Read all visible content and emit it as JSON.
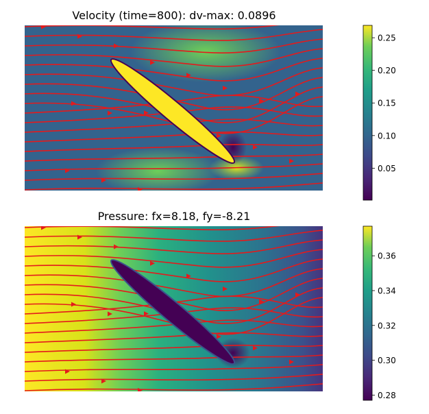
{
  "chart_data": [
    {
      "type": "field",
      "title": "Velocity (time=800): dv-max: 0.0896",
      "colormap": "viridis",
      "ylim": [
        0.001,
        0.269
      ],
      "yticks": [
        0.05,
        {
          "value": 0.1,
          "label": "0.10"
        },
        0.15,
        {
          "value": 0.2,
          "label": "0.20"
        },
        0.25
      ],
      "streamline_color": "#e41a1c"
    },
    {
      "type": "field",
      "title": "Pressure: fx=8.18, fy=-8.21",
      "colormap": "viridis",
      "ylim": [
        0.277,
        0.377
      ],
      "yticks": [
        0.28,
        {
          "value": 0.3,
          "label": "0.30"
        },
        0.32,
        0.34,
        0.36
      ],
      "streamline_color": "#e41a1c"
    }
  ]
}
